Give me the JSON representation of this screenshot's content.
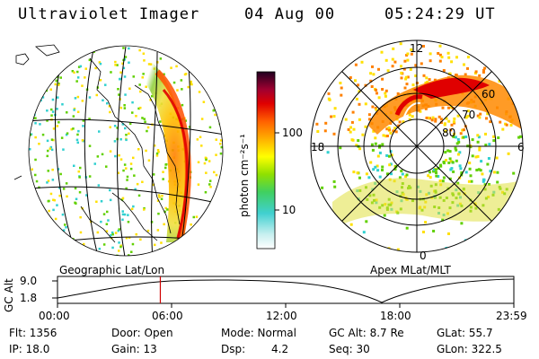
{
  "header": {
    "title": "Ultraviolet Imager",
    "date": "04 Aug 00",
    "time": "05:24:29 UT"
  },
  "geo_panel": {
    "label": "Geographic Lat/Lon"
  },
  "polar_panel": {
    "label": "Apex MLat/MLT",
    "mlt_labels": [
      "12",
      "18",
      "6",
      "0"
    ],
    "lat_labels": [
      "60",
      "70",
      "80"
    ]
  },
  "colorbar": {
    "unit_label": "photon cm⁻²s⁻¹",
    "ticks": [
      "100",
      "10"
    ]
  },
  "timeline": {
    "y_axis_label": "GC Alt",
    "y_ticks": [
      "9.0",
      "1.8"
    ],
    "x_ticks": [
      "00:00",
      "06:00",
      "12:00",
      "18:00",
      "23:59"
    ],
    "marker_time_hours": 5.408
  },
  "status": {
    "flt": "Flt: 1356",
    "ip": "IP: 18.0",
    "door": "Door: Open",
    "gain": "Gain: 13",
    "mode": "Mode: Normal",
    "dsp_label": "Dsp:",
    "dsp_value": "4.2",
    "gc_alt": "GC Alt: 8.7 Re",
    "seq": "Seq: 30",
    "glat": "GLat: 55.7",
    "glon": "GLon: 322.5"
  },
  "colors": {
    "red": "#e00000",
    "orange": "#ff8000",
    "yellow": "#ffe000",
    "green": "#60d000",
    "cyan": "#30d0d0",
    "marker": "#d00000"
  }
}
